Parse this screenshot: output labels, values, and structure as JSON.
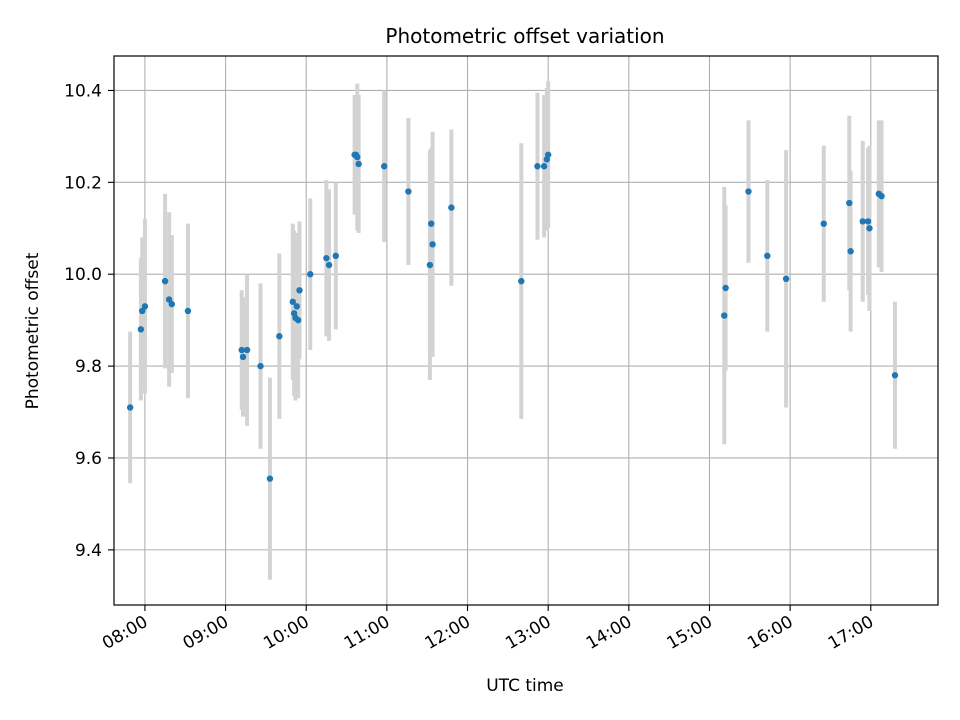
{
  "chart_data": {
    "type": "scatter",
    "title": "Photometric offset variation",
    "xlabel": "UTC time",
    "ylabel": "Photometric offset",
    "x_ticks": [
      "08:00",
      "09:00",
      "10:00",
      "11:00",
      "12:00",
      "13:00",
      "14:00",
      "15:00",
      "16:00",
      "17:00"
    ],
    "y_ticks": [
      "9.4",
      "9.6",
      "9.8",
      "10.0",
      "10.2",
      "10.4"
    ],
    "xlim": [
      "07:37",
      "17:50"
    ],
    "ylim": [
      9.28,
      10.475
    ],
    "grid": true,
    "marker_color": "#1f77b4",
    "errorbar_color": "#d3d3d3",
    "series": [
      {
        "points": [
          {
            "x": "07:49",
            "y": 9.71,
            "err": 0.165
          },
          {
            "x": "07:57",
            "y": 9.88,
            "err": 0.155
          },
          {
            "x": "07:58",
            "y": 9.92,
            "err": 0.16
          },
          {
            "x": "08:00",
            "y": 9.93,
            "err": 0.19
          },
          {
            "x": "08:15",
            "y": 9.985,
            "err": 0.19
          },
          {
            "x": "08:18",
            "y": 9.945,
            "err": 0.19
          },
          {
            "x": "08:20",
            "y": 9.935,
            "err": 0.15
          },
          {
            "x": "08:32",
            "y": 9.92,
            "err": 0.19
          },
          {
            "x": "09:12",
            "y": 9.835,
            "err": 0.13
          },
          {
            "x": "09:13",
            "y": 9.82,
            "err": 0.13
          },
          {
            "x": "09:16",
            "y": 9.835,
            "err": 0.165
          },
          {
            "x": "09:26",
            "y": 9.8,
            "err": 0.18
          },
          {
            "x": "09:33",
            "y": 9.555,
            "err": 0.22
          },
          {
            "x": "09:40",
            "y": 9.865,
            "err": 0.18
          },
          {
            "x": "09:50",
            "y": 9.94,
            "err": 0.17
          },
          {
            "x": "09:51",
            "y": 9.915,
            "err": 0.18
          },
          {
            "x": "09:52",
            "y": 9.905,
            "err": 0.18
          },
          {
            "x": "09:53",
            "y": 9.93,
            "err": 0.16
          },
          {
            "x": "09:54",
            "y": 9.9,
            "err": 0.17
          },
          {
            "x": "09:55",
            "y": 9.965,
            "err": 0.15
          },
          {
            "x": "10:03",
            "y": 10.0,
            "err": 0.165
          },
          {
            "x": "10:15",
            "y": 10.035,
            "err": 0.17
          },
          {
            "x": "10:17",
            "y": 10.02,
            "err": 0.165
          },
          {
            "x": "10:22",
            "y": 10.04,
            "err": 0.16
          },
          {
            "x": "10:36",
            "y": 10.26,
            "err": 0.13
          },
          {
            "x": "10:37",
            "y": 10.26,
            "err": 0.13
          },
          {
            "x": "10:38",
            "y": 10.255,
            "err": 0.16
          },
          {
            "x": "10:39",
            "y": 10.24,
            "err": 0.15
          },
          {
            "x": "10:58",
            "y": 10.235,
            "err": 0.165
          },
          {
            "x": "11:16",
            "y": 10.18,
            "err": 0.16
          },
          {
            "x": "11:32",
            "y": 10.02,
            "err": 0.25
          },
          {
            "x": "11:33",
            "y": 10.11,
            "err": 0.165
          },
          {
            "x": "11:34",
            "y": 10.065,
            "err": 0.245
          },
          {
            "x": "11:48",
            "y": 10.145,
            "err": 0.17
          },
          {
            "x": "12:40",
            "y": 9.985,
            "err": 0.3
          },
          {
            "x": "12:52",
            "y": 10.235,
            "err": 0.16
          },
          {
            "x": "12:57",
            "y": 10.235,
            "err": 0.155
          },
          {
            "x": "12:59",
            "y": 10.25,
            "err": 0.155
          },
          {
            "x": "13:00",
            "y": 10.26,
            "err": 0.16
          },
          {
            "x": "15:11",
            "y": 9.91,
            "err": 0.28
          },
          {
            "x": "15:12",
            "y": 9.97,
            "err": 0.18
          },
          {
            "x": "15:29",
            "y": 10.18,
            "err": 0.155
          },
          {
            "x": "15:43",
            "y": 10.04,
            "err": 0.165
          },
          {
            "x": "15:57",
            "y": 9.99,
            "err": 0.28
          },
          {
            "x": "16:25",
            "y": 10.11,
            "err": 0.17
          },
          {
            "x": "16:44",
            "y": 10.155,
            "err": 0.19
          },
          {
            "x": "16:45",
            "y": 10.05,
            "err": 0.175
          },
          {
            "x": "16:54",
            "y": 10.115,
            "err": 0.175
          },
          {
            "x": "16:58",
            "y": 10.115,
            "err": 0.16
          },
          {
            "x": "16:59",
            "y": 10.1,
            "err": 0.18
          },
          {
            "x": "17:06",
            "y": 10.175,
            "err": 0.16
          },
          {
            "x": "17:08",
            "y": 10.17,
            "err": 0.165
          },
          {
            "x": "17:18",
            "y": 9.78,
            "err": 0.16
          }
        ]
      }
    ]
  }
}
